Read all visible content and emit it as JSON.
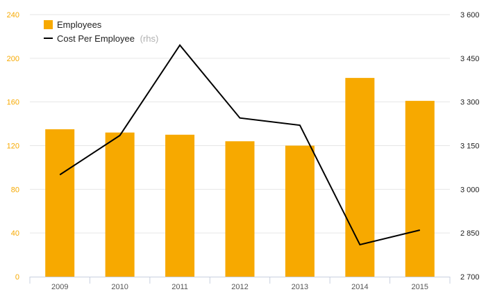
{
  "chart_data": {
    "type": "bar+line",
    "categories": [
      "2009",
      "2010",
      "2011",
      "2012",
      "2013",
      "2014",
      "2015"
    ],
    "series": [
      {
        "name": "Employees",
        "type": "bar",
        "axis": "left",
        "color": "#f7a900",
        "values": [
          135,
          132,
          130,
          124,
          120,
          182,
          161
        ]
      },
      {
        "name": "Cost Per Employee",
        "name_suffix": "(rhs)",
        "type": "line",
        "axis": "right",
        "color": "#000000",
        "values": [
          3050,
          3185,
          3495,
          3245,
          3220,
          2810,
          2860
        ]
      }
    ],
    "left_axis": {
      "ylim": [
        0,
        240
      ],
      "ticks": [
        0,
        40,
        80,
        120,
        160,
        200,
        240
      ],
      "tick_labels": [
        "0",
        "40",
        "80",
        "120",
        "160",
        "200",
        "240"
      ],
      "color": "#f7a900"
    },
    "right_axis": {
      "ylim": [
        2700,
        3600
      ],
      "ticks": [
        2700,
        2850,
        3000,
        3150,
        3300,
        3450,
        3600
      ],
      "tick_labels": [
        "2 700",
        "2 850",
        "3 000",
        "3 150",
        "3 300",
        "3 450",
        "3 600"
      ]
    },
    "grid": true,
    "legend": "top-left"
  }
}
